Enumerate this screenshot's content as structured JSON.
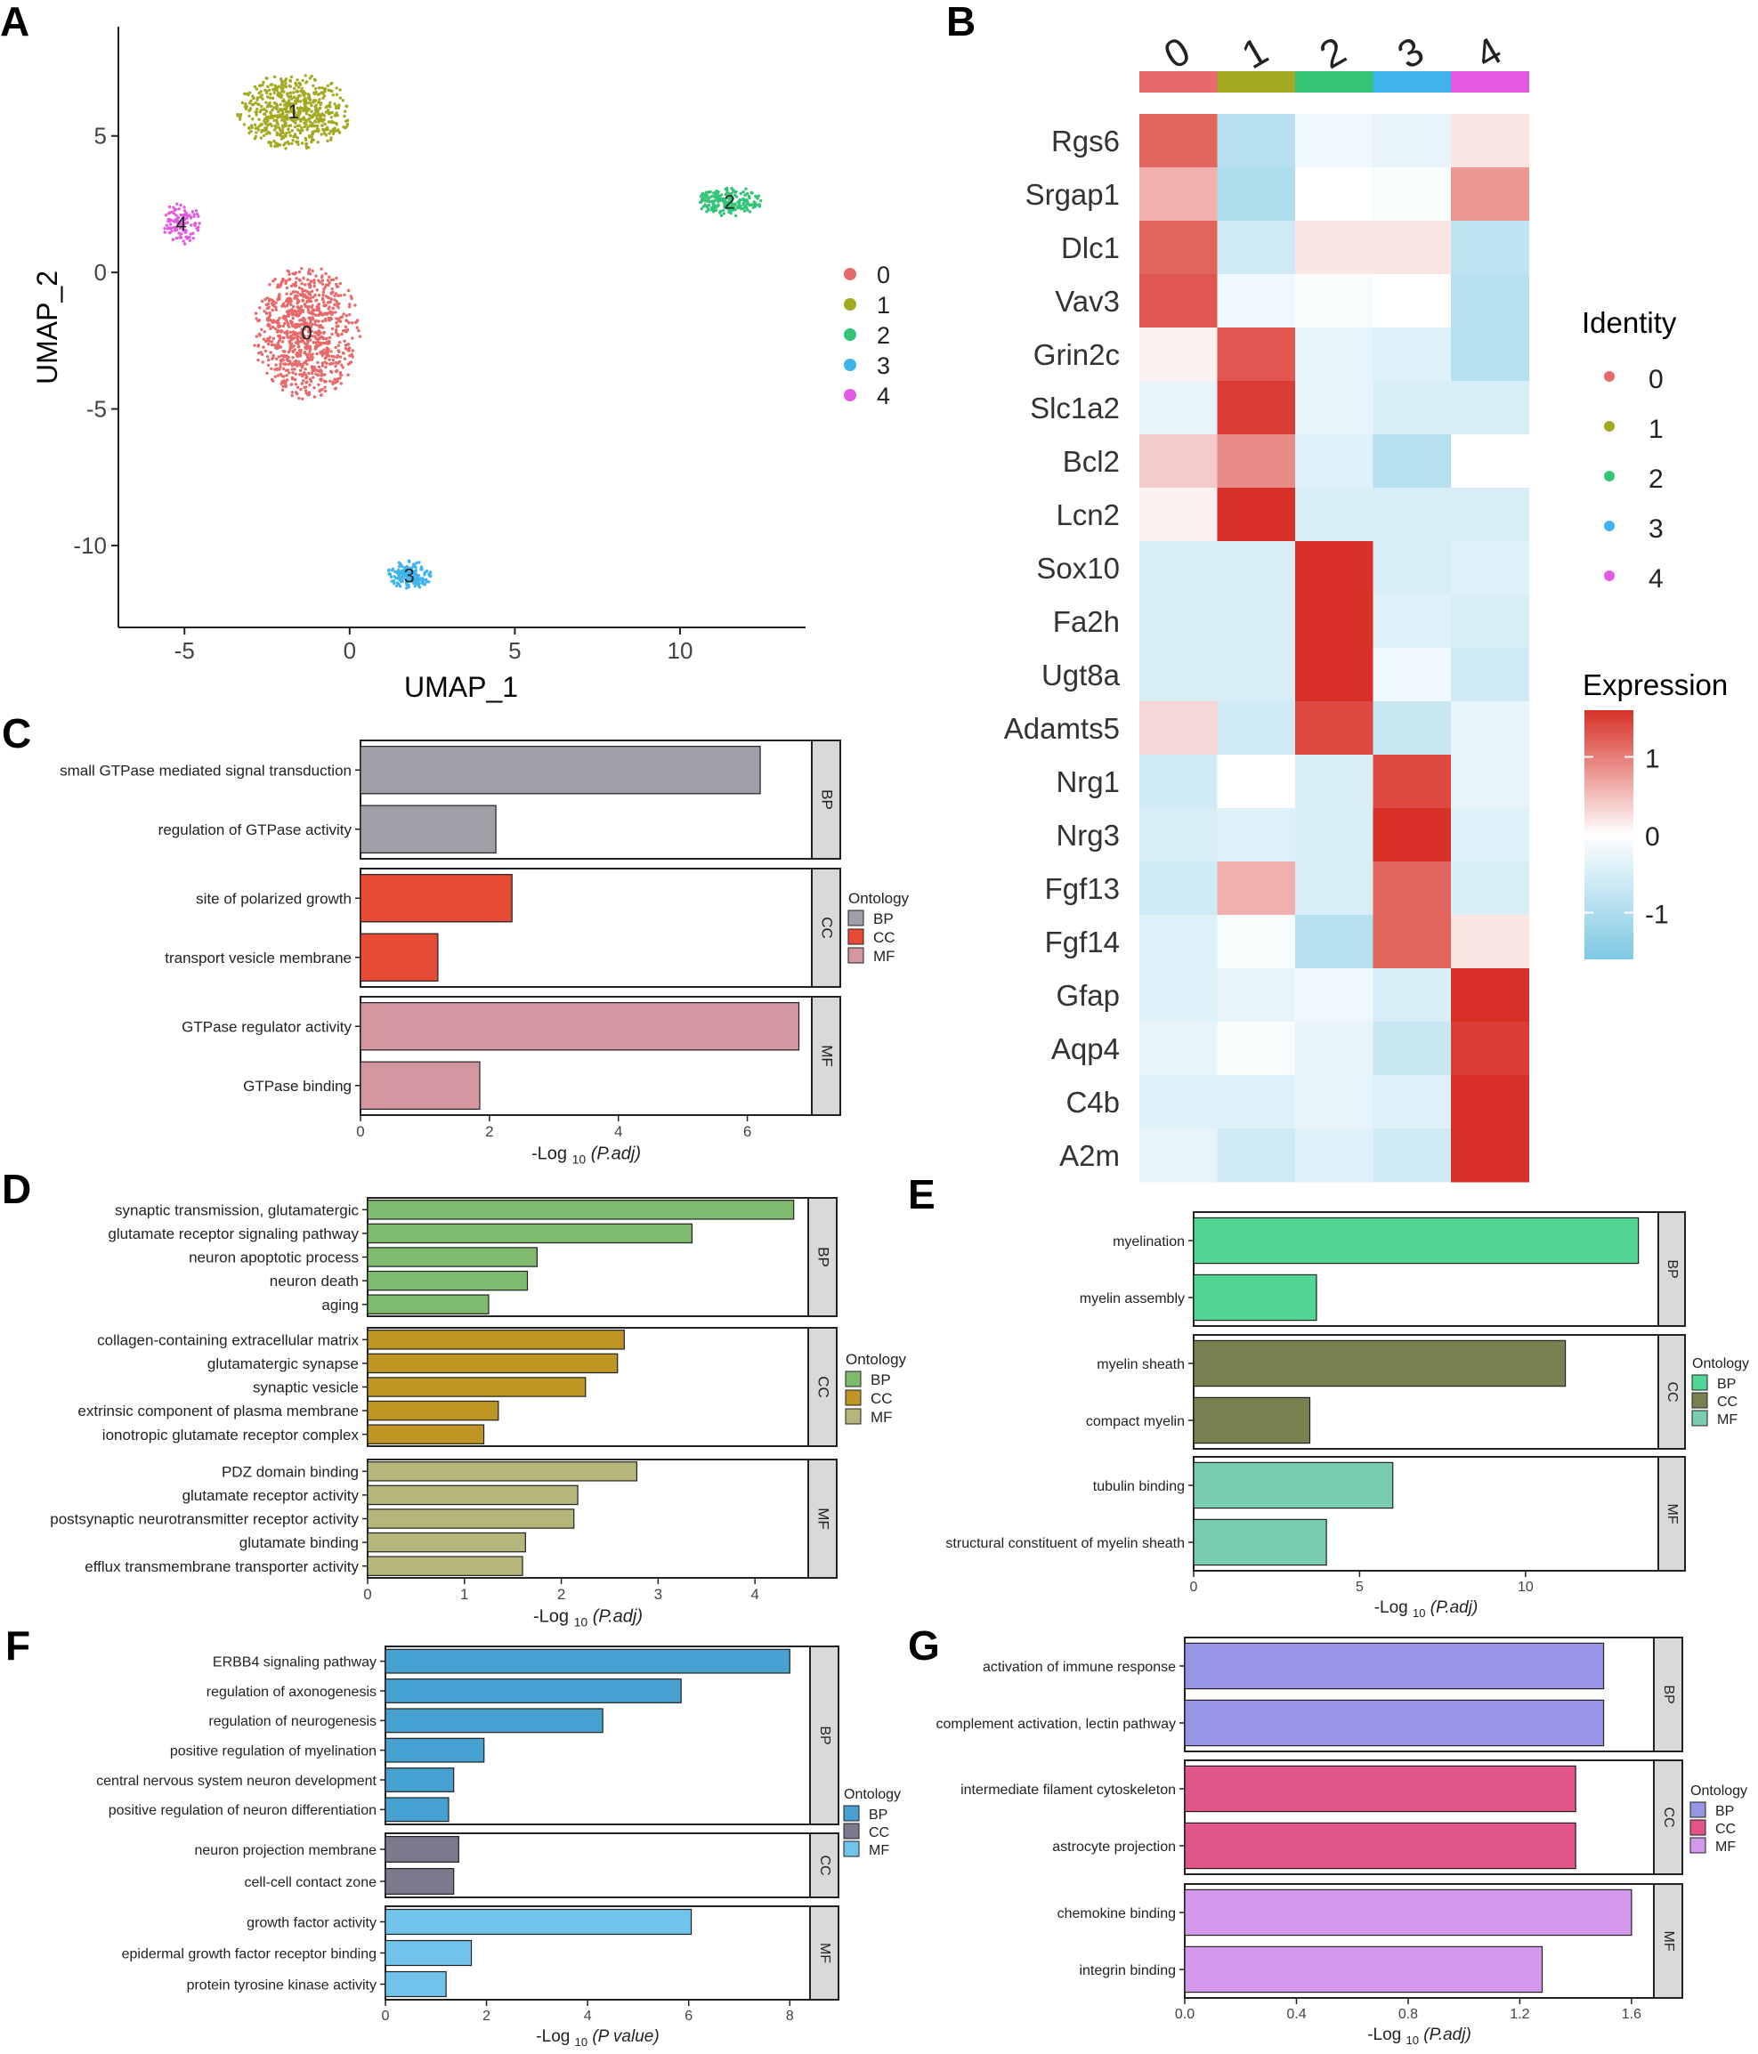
{
  "chart_data": [
    {
      "panel": "A",
      "type": "scatter",
      "xlabel": "UMAP_1",
      "ylabel": "UMAP_2",
      "xlim": [
        -7,
        13.8
      ],
      "ylim": [
        -13,
        9
      ],
      "xticks": [
        -5,
        0,
        5,
        10
      ],
      "yticks": [
        5,
        0,
        -5,
        -10
      ],
      "legend": [
        "0",
        "1",
        "2",
        "3",
        "4"
      ],
      "colors": [
        "#e8696a",
        "#a3a920",
        "#33c477",
        "#3fb4ec",
        "#e35be3"
      ],
      "clusters": [
        {
          "label": "0",
          "center": [
            -1.3,
            -2.2
          ],
          "spread": [
            1.65,
            2.5
          ],
          "n": 900
        },
        {
          "label": "1",
          "center": [
            -1.7,
            5.9
          ],
          "spread": [
            1.8,
            1.4
          ],
          "n": 620
        },
        {
          "label": "2",
          "center": [
            11.5,
            2.6
          ],
          "spread": [
            1.0,
            0.55
          ],
          "n": 200
        },
        {
          "label": "3",
          "center": [
            1.8,
            -11.1
          ],
          "spread": [
            0.7,
            0.55
          ],
          "n": 170
        },
        {
          "label": "4",
          "center": [
            -5.1,
            1.8
          ],
          "spread": [
            0.6,
            0.8
          ],
          "n": 110
        }
      ]
    },
    {
      "panel": "B",
      "type": "heatmap",
      "columns": [
        "0",
        "1",
        "2",
        "3",
        "4"
      ],
      "column_colors": [
        "#e8696a",
        "#a3a920",
        "#33c477",
        "#3fb4ec",
        "#e35be3"
      ],
      "rows": [
        "Rgs6",
        "Srgap1",
        "Dlc1",
        "Vav3",
        "Grin2c",
        "Slc1a2",
        "Bcl2",
        "Lcn2",
        "Sox10",
        "Fa2h",
        "Ugt8a",
        "Adamts5",
        "Nrg1",
        "Nrg3",
        "Fgf13",
        "Fgf14",
        "Gfap",
        "Aqp4",
        "C4b",
        "A2m"
      ],
      "values": [
        [
          1.2,
          -0.9,
          -0.2,
          -0.3,
          0.2
        ],
        [
          0.6,
          -1.0,
          0.0,
          -0.1,
          0.8
        ],
        [
          1.2,
          -0.6,
          0.2,
          0.2,
          -0.8
        ],
        [
          1.3,
          -0.2,
          -0.1,
          0.0,
          -0.9
        ],
        [
          0.1,
          1.3,
          -0.3,
          -0.4,
          -0.9
        ],
        [
          -0.3,
          1.5,
          -0.3,
          -0.5,
          -0.5
        ],
        [
          0.4,
          0.9,
          -0.4,
          -0.9,
          0.0
        ],
        [
          0.1,
          1.6,
          -0.5,
          -0.5,
          -0.5
        ],
        [
          -0.5,
          -0.5,
          1.6,
          -0.5,
          -0.4
        ],
        [
          -0.5,
          -0.5,
          1.6,
          -0.4,
          -0.5
        ],
        [
          -0.5,
          -0.5,
          1.6,
          -0.2,
          -0.6
        ],
        [
          0.3,
          -0.6,
          1.4,
          -0.7,
          -0.3
        ],
        [
          -0.6,
          0.0,
          -0.5,
          1.4,
          -0.3
        ],
        [
          -0.5,
          -0.4,
          -0.5,
          1.6,
          -0.4
        ],
        [
          -0.6,
          0.6,
          -0.5,
          1.2,
          -0.5
        ],
        [
          -0.4,
          -0.1,
          -0.9,
          1.2,
          0.2
        ],
        [
          -0.4,
          -0.3,
          -0.2,
          -0.5,
          1.6
        ],
        [
          -0.3,
          -0.1,
          -0.3,
          -0.7,
          1.5
        ],
        [
          -0.4,
          -0.4,
          -0.3,
          -0.4,
          1.6
        ],
        [
          -0.3,
          -0.6,
          -0.4,
          -0.6,
          1.6
        ]
      ],
      "identity_title": "Identity",
      "identity_legend": [
        "0",
        "1",
        "2",
        "3",
        "4"
      ],
      "expression_title": "Expression",
      "expression_ticks": [
        1,
        0,
        -1
      ],
      "expression_range": [
        -1.6,
        1.6
      ]
    },
    {
      "panel": "C",
      "type": "bar",
      "xlabel_pre": "-Log",
      "xlabel_sub": "10",
      "xlabel_arg": "(P.adj)",
      "xlim": [
        0,
        7.0
      ],
      "xticks": [
        0,
        2,
        4,
        6
      ],
      "legend_title": "Ontology",
      "legend": [
        "BP",
        "CC",
        "MF"
      ],
      "colors": [
        "#9e9fa7",
        "#e54b35",
        "#d4969f"
      ],
      "groups": [
        {
          "name": "BP",
          "terms": [
            "small GTPase mediated signal transduction",
            "regulation of GTPase activity"
          ],
          "values": [
            6.2,
            2.1
          ]
        },
        {
          "name": "CC",
          "terms": [
            "site of polarized growth",
            "transport vesicle membrane"
          ],
          "values": [
            2.35,
            1.2
          ]
        },
        {
          "name": "MF",
          "terms": [
            "GTPase regulator activity",
            "GTPase binding"
          ],
          "values": [
            6.8,
            1.85
          ]
        }
      ]
    },
    {
      "panel": "D",
      "type": "bar",
      "xlabel_pre": "-Log",
      "xlabel_sub": "10",
      "xlabel_arg": "(P.adj)",
      "xlim": [
        0,
        4.55
      ],
      "xticks": [
        0,
        1,
        2,
        3,
        4
      ],
      "legend_title": "Ontology",
      "legend": [
        "BP",
        "CC",
        "MF"
      ],
      "colors": [
        "#7fbb6f",
        "#bf9524",
        "#b4b67b"
      ],
      "groups": [
        {
          "name": "BP",
          "terms": [
            "synaptic transmission, glutamatergic",
            "glutamate receptor signaling pathway",
            "neuron apoptotic process",
            "neuron death",
            "aging"
          ],
          "values": [
            4.4,
            3.35,
            1.75,
            1.65,
            1.25
          ]
        },
        {
          "name": "CC",
          "terms": [
            "collagen-containing extracellular matrix",
            "glutamatergic synapse",
            "synaptic vesicle",
            "extrinsic component of plasma membrane",
            "ionotropic glutamate receptor complex"
          ],
          "values": [
            2.65,
            2.58,
            2.25,
            1.35,
            1.2
          ]
        },
        {
          "name": "MF",
          "terms": [
            "PDZ domain binding",
            "glutamate receptor activity",
            "postsynaptic neurotransmitter receptor activity",
            "glutamate binding",
            "efflux transmembrane transporter activity"
          ],
          "values": [
            2.78,
            2.17,
            2.13,
            1.63,
            1.6
          ]
        }
      ]
    },
    {
      "panel": "E",
      "type": "bar",
      "xlabel_pre": "-Log",
      "xlabel_sub": "10",
      "xlabel_arg": "(P.adj)",
      "xlim": [
        0,
        14.0
      ],
      "xticks": [
        0,
        5,
        10
      ],
      "legend_title": "Ontology",
      "legend": [
        "BP",
        "CC",
        "MF"
      ],
      "colors": [
        "#52d695",
        "#7a8050",
        "#79cbb2"
      ],
      "groups": [
        {
          "name": "BP",
          "terms": [
            "myelination",
            "myelin assembly"
          ],
          "values": [
            13.4,
            3.7
          ]
        },
        {
          "name": "CC",
          "terms": [
            "myelin sheath",
            "compact myelin"
          ],
          "values": [
            11.2,
            3.5
          ]
        },
        {
          "name": "MF",
          "terms": [
            "tubulin binding",
            "structural constituent of myelin sheath"
          ],
          "values": [
            6.0,
            4.0
          ]
        }
      ]
    },
    {
      "panel": "F",
      "type": "bar",
      "xlabel_pre": "-Log",
      "xlabel_sub": "10",
      "xlabel_arg": "(P value)",
      "xlim": [
        0,
        8.4
      ],
      "xticks": [
        0,
        2,
        4,
        6,
        8
      ],
      "legend_title": "Ontology",
      "legend": [
        "BP",
        "CC",
        "MF"
      ],
      "colors": [
        "#46a1d0",
        "#7b7a8d",
        "#72c3ec"
      ],
      "groups": [
        {
          "name": "BP",
          "terms": [
            "ERBB4 signaling pathway",
            "regulation of axonogenesis",
            "regulation of neurogenesis",
            "positive regulation of myelination",
            "central nervous system neuron development",
            "positive regulation of neuron differentiation"
          ],
          "values": [
            8.0,
            5.85,
            4.3,
            1.95,
            1.35,
            1.25
          ]
        },
        {
          "name": "CC",
          "terms": [
            "neuron projection membrane",
            "cell-cell contact zone"
          ],
          "values": [
            1.45,
            1.35
          ]
        },
        {
          "name": "MF",
          "terms": [
            "growth factor activity",
            "epidermal growth factor receptor binding",
            "protein tyrosine kinase activity"
          ],
          "values": [
            6.05,
            1.7,
            1.2
          ]
        }
      ]
    },
    {
      "panel": "G",
      "type": "bar",
      "xlabel_pre": "-Log",
      "xlabel_sub": "10",
      "xlabel_arg": "(P.adj)",
      "xlim": [
        0,
        1.68
      ],
      "xticks": [
        0.0,
        0.4,
        0.8,
        1.2,
        1.6
      ],
      "legend_title": "Ontology",
      "legend": [
        "BP",
        "CC",
        "MF"
      ],
      "colors": [
        "#9595e3",
        "#e05489",
        "#d397ec"
      ],
      "groups": [
        {
          "name": "BP",
          "terms": [
            "activation of immune response",
            "complement activation, lectin pathway"
          ],
          "values": [
            1.5,
            1.5
          ]
        },
        {
          "name": "CC",
          "terms": [
            "intermediate filament cytoskeleton",
            "astrocyte projection"
          ],
          "values": [
            1.4,
            1.4
          ]
        },
        {
          "name": "MF",
          "terms": [
            "chemokine binding",
            "integrin binding"
          ],
          "values": [
            1.6,
            1.28
          ]
        }
      ]
    }
  ],
  "panel_labels": {
    "A": "A",
    "B": "B",
    "C": "C",
    "D": "D",
    "E": "E",
    "F": "F",
    "G": "G"
  }
}
